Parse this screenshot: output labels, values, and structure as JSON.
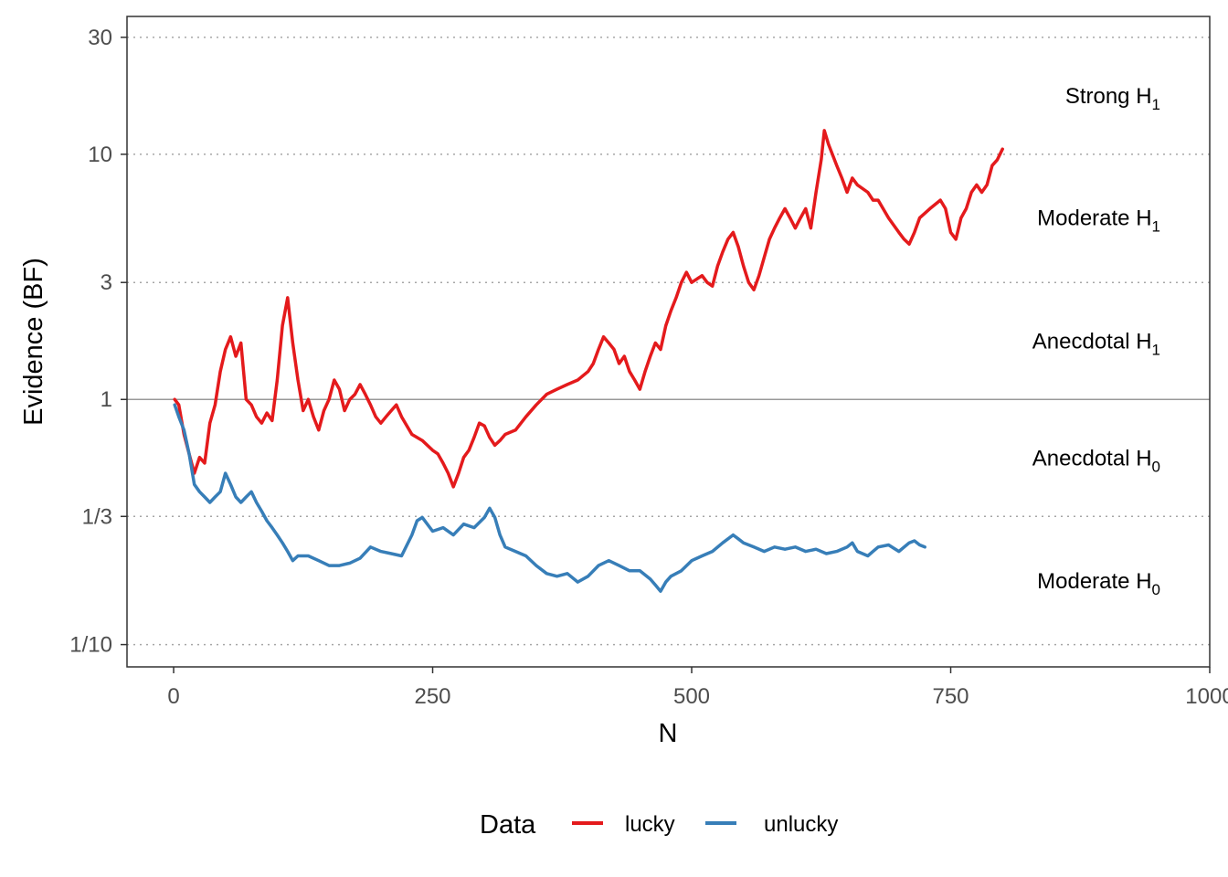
{
  "chart_data": {
    "type": "line",
    "xlabel": "N",
    "ylabel": "Evidence (BF)",
    "xlim": [
      -45,
      1000
    ],
    "ylim": [
      0.0811,
      36.5
    ],
    "y_scale": "log",
    "grid": "dotted horizontal at y ticks",
    "legend_position": "bottom",
    "legend_title": "Data",
    "x_ticks": [
      {
        "value": 0,
        "label": "0"
      },
      {
        "value": 250,
        "label": "250"
      },
      {
        "value": 500,
        "label": "500"
      },
      {
        "value": 750,
        "label": "750"
      },
      {
        "value": 1000,
        "label": "1000"
      }
    ],
    "y_ticks": [
      {
        "value": 0.1,
        "label": "1/10"
      },
      {
        "value": 0.3333,
        "label": "1/3"
      },
      {
        "value": 1,
        "label": "1"
      },
      {
        "value": 3,
        "label": "3"
      },
      {
        "value": 10,
        "label": "10"
      },
      {
        "value": 30,
        "label": "30"
      }
    ],
    "reference_line": 1,
    "regions": [
      {
        "text": "Strong H",
        "sub": "1",
        "y": 17.3
      },
      {
        "text": "Moderate H",
        "sub": "1",
        "y": 5.5
      },
      {
        "text": "Anecdotal H",
        "sub": "1",
        "y": 1.73
      },
      {
        "text": "Anecdotal H",
        "sub": "0",
        "y": 0.577
      },
      {
        "text": "Moderate H",
        "sub": "0",
        "y": 0.182
      }
    ],
    "series": [
      {
        "name": "lucky",
        "color": "#e41a1c",
        "points": [
          [
            1,
            1.0
          ],
          [
            5,
            0.95
          ],
          [
            10,
            0.72
          ],
          [
            15,
            0.6
          ],
          [
            20,
            0.5
          ],
          [
            25,
            0.58
          ],
          [
            30,
            0.55
          ],
          [
            35,
            0.8
          ],
          [
            40,
            0.95
          ],
          [
            45,
            1.3
          ],
          [
            50,
            1.6
          ],
          [
            55,
            1.8
          ],
          [
            60,
            1.5
          ],
          [
            65,
            1.7
          ],
          [
            70,
            1.0
          ],
          [
            75,
            0.95
          ],
          [
            80,
            0.85
          ],
          [
            85,
            0.8
          ],
          [
            90,
            0.88
          ],
          [
            95,
            0.82
          ],
          [
            100,
            1.2
          ],
          [
            105,
            2.0
          ],
          [
            110,
            2.6
          ],
          [
            115,
            1.7
          ],
          [
            120,
            1.2
          ],
          [
            125,
            0.9
          ],
          [
            130,
            1.0
          ],
          [
            135,
            0.85
          ],
          [
            140,
            0.75
          ],
          [
            145,
            0.9
          ],
          [
            150,
            1.0
          ],
          [
            155,
            1.2
          ],
          [
            160,
            1.1
          ],
          [
            165,
            0.9
          ],
          [
            170,
            1.0
          ],
          [
            175,
            1.05
          ],
          [
            180,
            1.15
          ],
          [
            185,
            1.05
          ],
          [
            190,
            0.95
          ],
          [
            195,
            0.85
          ],
          [
            200,
            0.8
          ],
          [
            205,
            0.85
          ],
          [
            210,
            0.9
          ],
          [
            215,
            0.95
          ],
          [
            220,
            0.85
          ],
          [
            230,
            0.72
          ],
          [
            240,
            0.68
          ],
          [
            250,
            0.62
          ],
          [
            255,
            0.6
          ],
          [
            260,
            0.55
          ],
          [
            265,
            0.5
          ],
          [
            270,
            0.44
          ],
          [
            275,
            0.5
          ],
          [
            280,
            0.58
          ],
          [
            285,
            0.62
          ],
          [
            290,
            0.7
          ],
          [
            295,
            0.8
          ],
          [
            300,
            0.78
          ],
          [
            305,
            0.7
          ],
          [
            310,
            0.65
          ],
          [
            315,
            0.68
          ],
          [
            320,
            0.72
          ],
          [
            330,
            0.75
          ],
          [
            340,
            0.85
          ],
          [
            350,
            0.95
          ],
          [
            360,
            1.05
          ],
          [
            370,
            1.1
          ],
          [
            380,
            1.15
          ],
          [
            390,
            1.2
          ],
          [
            400,
            1.3
          ],
          [
            405,
            1.4
          ],
          [
            410,
            1.6
          ],
          [
            415,
            1.8
          ],
          [
            420,
            1.7
          ],
          [
            425,
            1.6
          ],
          [
            430,
            1.4
          ],
          [
            435,
            1.5
          ],
          [
            440,
            1.3
          ],
          [
            445,
            1.2
          ],
          [
            450,
            1.1
          ],
          [
            455,
            1.3
          ],
          [
            460,
            1.5
          ],
          [
            465,
            1.7
          ],
          [
            470,
            1.6
          ],
          [
            475,
            2.0
          ],
          [
            480,
            2.3
          ],
          [
            485,
            2.6
          ],
          [
            490,
            3.0
          ],
          [
            495,
            3.3
          ],
          [
            500,
            3.0
          ],
          [
            505,
            3.1
          ],
          [
            510,
            3.2
          ],
          [
            515,
            3.0
          ],
          [
            520,
            2.9
          ],
          [
            525,
            3.5
          ],
          [
            530,
            4.0
          ],
          [
            535,
            4.5
          ],
          [
            540,
            4.8
          ],
          [
            545,
            4.2
          ],
          [
            550,
            3.5
          ],
          [
            555,
            3.0
          ],
          [
            560,
            2.8
          ],
          [
            565,
            3.2
          ],
          [
            570,
            3.8
          ],
          [
            575,
            4.5
          ],
          [
            580,
            5.0
          ],
          [
            585,
            5.5
          ],
          [
            590,
            6.0
          ],
          [
            595,
            5.5
          ],
          [
            600,
            5.0
          ],
          [
            605,
            5.5
          ],
          [
            610,
            6.0
          ],
          [
            615,
            5.0
          ],
          [
            620,
            7.0
          ],
          [
            625,
            9.5
          ],
          [
            628,
            12.5
          ],
          [
            632,
            11.0
          ],
          [
            640,
            9.0
          ],
          [
            645,
            8.0
          ],
          [
            650,
            7.0
          ],
          [
            655,
            8.0
          ],
          [
            660,
            7.5
          ],
          [
            670,
            7.0
          ],
          [
            675,
            6.5
          ],
          [
            680,
            6.5
          ],
          [
            690,
            5.5
          ],
          [
            700,
            4.8
          ],
          [
            705,
            4.5
          ],
          [
            710,
            4.3
          ],
          [
            715,
            4.8
          ],
          [
            720,
            5.5
          ],
          [
            730,
            6.0
          ],
          [
            740,
            6.5
          ],
          [
            745,
            6.0
          ],
          [
            750,
            4.8
          ],
          [
            755,
            4.5
          ],
          [
            760,
            5.5
          ],
          [
            765,
            6.0
          ],
          [
            770,
            7.0
          ],
          [
            775,
            7.5
          ],
          [
            780,
            7.0
          ],
          [
            785,
            7.5
          ],
          [
            790,
            9.0
          ],
          [
            795,
            9.5
          ],
          [
            800,
            10.5
          ]
        ]
      },
      {
        "name": "unlucky",
        "color": "#377eb8",
        "points": [
          [
            1,
            0.95
          ],
          [
            5,
            0.85
          ],
          [
            10,
            0.75
          ],
          [
            15,
            0.6
          ],
          [
            20,
            0.45
          ],
          [
            25,
            0.42
          ],
          [
            30,
            0.4
          ],
          [
            35,
            0.38
          ],
          [
            40,
            0.4
          ],
          [
            45,
            0.42
          ],
          [
            50,
            0.5
          ],
          [
            55,
            0.45
          ],
          [
            60,
            0.4
          ],
          [
            65,
            0.38
          ],
          [
            70,
            0.4
          ],
          [
            75,
            0.42
          ],
          [
            80,
            0.38
          ],
          [
            85,
            0.35
          ],
          [
            90,
            0.32
          ],
          [
            95,
            0.3
          ],
          [
            100,
            0.28
          ],
          [
            105,
            0.26
          ],
          [
            110,
            0.24
          ],
          [
            115,
            0.22
          ],
          [
            120,
            0.23
          ],
          [
            130,
            0.23
          ],
          [
            140,
            0.22
          ],
          [
            150,
            0.21
          ],
          [
            160,
            0.21
          ],
          [
            170,
            0.215
          ],
          [
            180,
            0.225
          ],
          [
            190,
            0.25
          ],
          [
            200,
            0.24
          ],
          [
            210,
            0.235
          ],
          [
            220,
            0.23
          ],
          [
            230,
            0.28
          ],
          [
            235,
            0.32
          ],
          [
            240,
            0.33
          ],
          [
            250,
            0.29
          ],
          [
            260,
            0.3
          ],
          [
            270,
            0.28
          ],
          [
            280,
            0.31
          ],
          [
            290,
            0.3
          ],
          [
            300,
            0.33
          ],
          [
            305,
            0.36
          ],
          [
            310,
            0.33
          ],
          [
            315,
            0.28
          ],
          [
            320,
            0.25
          ],
          [
            330,
            0.24
          ],
          [
            340,
            0.23
          ],
          [
            350,
            0.21
          ],
          [
            360,
            0.195
          ],
          [
            370,
            0.19
          ],
          [
            380,
            0.195
          ],
          [
            390,
            0.18
          ],
          [
            400,
            0.19
          ],
          [
            410,
            0.21
          ],
          [
            420,
            0.22
          ],
          [
            430,
            0.21
          ],
          [
            440,
            0.2
          ],
          [
            450,
            0.2
          ],
          [
            460,
            0.185
          ],
          [
            465,
            0.175
          ],
          [
            470,
            0.165
          ],
          [
            475,
            0.18
          ],
          [
            480,
            0.19
          ],
          [
            490,
            0.2
          ],
          [
            500,
            0.22
          ],
          [
            510,
            0.23
          ],
          [
            520,
            0.24
          ],
          [
            530,
            0.26
          ],
          [
            540,
            0.28
          ],
          [
            545,
            0.27
          ],
          [
            550,
            0.26
          ],
          [
            560,
            0.25
          ],
          [
            570,
            0.24
          ],
          [
            580,
            0.25
          ],
          [
            590,
            0.245
          ],
          [
            600,
            0.25
          ],
          [
            610,
            0.24
          ],
          [
            620,
            0.245
          ],
          [
            630,
            0.235
          ],
          [
            640,
            0.24
          ],
          [
            650,
            0.25
          ],
          [
            655,
            0.26
          ],
          [
            660,
            0.24
          ],
          [
            670,
            0.23
          ],
          [
            675,
            0.24
          ],
          [
            680,
            0.25
          ],
          [
            690,
            0.255
          ],
          [
            700,
            0.24
          ],
          [
            710,
            0.26
          ],
          [
            715,
            0.265
          ],
          [
            720,
            0.255
          ],
          [
            725,
            0.25
          ]
        ]
      }
    ]
  }
}
